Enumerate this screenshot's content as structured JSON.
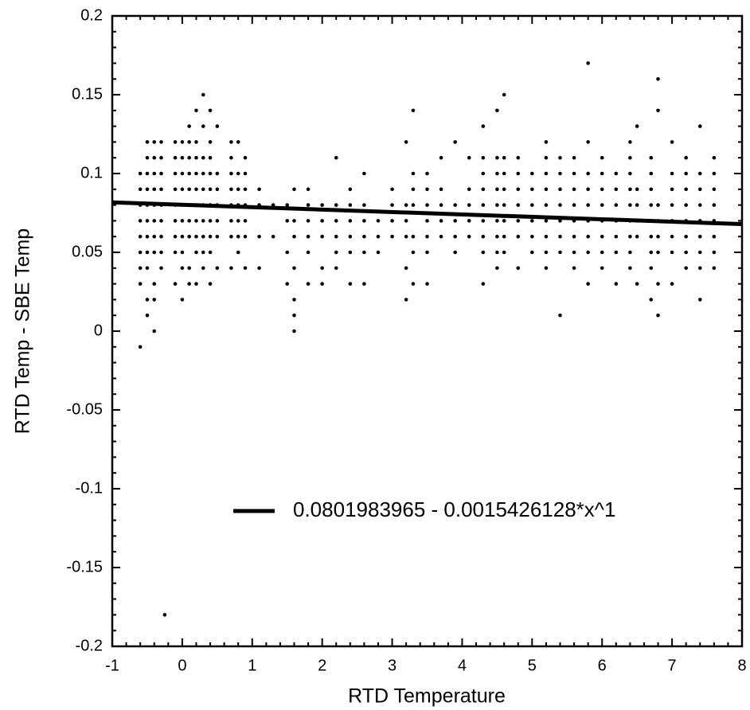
{
  "chart_data": {
    "type": "scatter",
    "xlabel": "RTD Temperature",
    "ylabel": "RTD Temp - SBE Temp",
    "xlim": [
      -1,
      8
    ],
    "ylim": [
      -0.2,
      0.2
    ],
    "xticks": [
      -1,
      0,
      1,
      2,
      3,
      4,
      5,
      6,
      7,
      8
    ],
    "yticks": [
      -0.2,
      -0.15,
      -0.1,
      -0.05,
      0,
      0.05,
      0.1,
      0.15,
      0.2
    ],
    "legend": "lower right",
    "series": [
      {
        "color": "#000000",
        "x": [
          -0.6,
          -0.6,
          -0.6,
          -0.6,
          -0.6,
          -0.6,
          -0.6,
          -0.6,
          -0.6,
          -0.5,
          -0.5,
          -0.5,
          -0.5,
          -0.5,
          -0.5,
          -0.5,
          -0.5,
          -0.5,
          -0.5,
          -0.5,
          -0.4,
          -0.4,
          -0.4,
          -0.4,
          -0.4,
          -0.4,
          -0.4,
          -0.4,
          -0.4,
          -0.4,
          -0.4,
          -0.3,
          -0.3,
          -0.3,
          -0.3,
          -0.3,
          -0.3,
          -0.3,
          -0.3,
          -0.3,
          -0.25,
          -0.1,
          -0.1,
          -0.1,
          -0.1,
          -0.1,
          -0.1,
          -0.1,
          -0.1,
          -0.1,
          0,
          0,
          0,
          0,
          0,
          0,
          0,
          0,
          0,
          0,
          0.1,
          0.1,
          0.1,
          0.1,
          0.1,
          0.1,
          0.1,
          0.1,
          0.1,
          0.1,
          0.2,
          0.2,
          0.2,
          0.2,
          0.2,
          0.2,
          0.2,
          0.2,
          0.2,
          0.2,
          0.3,
          0.3,
          0.3,
          0.3,
          0.3,
          0.3,
          0.3,
          0.3,
          0.3,
          0.3,
          0.4,
          0.4,
          0.4,
          0.4,
          0.4,
          0.4,
          0.4,
          0.4,
          0.4,
          0.4,
          0.5,
          0.5,
          0.5,
          0.5,
          0.5,
          0.5,
          0.5,
          0.7,
          0.7,
          0.7,
          0.7,
          0.7,
          0.7,
          0.7,
          0.7,
          0.8,
          0.8,
          0.8,
          0.8,
          0.8,
          0.8,
          0.8,
          0.9,
          0.9,
          0.9,
          0.9,
          0.9,
          0.9,
          0.9,
          1.1,
          1.1,
          1.1,
          1.1,
          1.3,
          1.3,
          1.5,
          1.5,
          1.5,
          1.5,
          1.6,
          1.6,
          1.6,
          1.6,
          1.6,
          1.6,
          1.6,
          1.8,
          1.8,
          1.8,
          1.8,
          1.8,
          1.8,
          2.0,
          2.0,
          2.0,
          2.0,
          2.0,
          2.2,
          2.2,
          2.2,
          2.2,
          2.2,
          2.2,
          2.4,
          2.4,
          2.4,
          2.4,
          2.4,
          2.4,
          2.6,
          2.6,
          2.6,
          2.6,
          2.6,
          2.6,
          2.8,
          2.8,
          2.8,
          3.0,
          3.0,
          3.0,
          3.0,
          3.2,
          3.2,
          3.2,
          3.2,
          3.2,
          3.2,
          3.3,
          3.3,
          3.3,
          3.3,
          3.3,
          3.3,
          3.3,
          3.5,
          3.5,
          3.5,
          3.5,
          3.5,
          3.5,
          3.5,
          3.7,
          3.7,
          3.7,
          3.7,
          3.7,
          3.9,
          3.9,
          3.9,
          3.9,
          3.9,
          4.1,
          4.1,
          4.1,
          4.1,
          4.1,
          4.3,
          4.3,
          4.3,
          4.3,
          4.3,
          4.3,
          4.3,
          4.3,
          4.3,
          4.5,
          4.5,
          4.5,
          4.5,
          4.5,
          4.5,
          4.5,
          4.5,
          4.5,
          4.6,
          4.6,
          4.6,
          4.6,
          4.6,
          4.6,
          4.6,
          4.6,
          4.8,
          4.8,
          4.8,
          4.8,
          4.8,
          4.8,
          4.8,
          5.0,
          5.0,
          5.0,
          5.0,
          5.0,
          5.0,
          5.2,
          5.2,
          5.2,
          5.2,
          5.2,
          5.2,
          5.2,
          5.2,
          5.2,
          5.4,
          5.4,
          5.4,
          5.4,
          5.4,
          5.4,
          5.4,
          5.4,
          5.6,
          5.6,
          5.6,
          5.6,
          5.6,
          5.6,
          5.6,
          5.6,
          5.8,
          5.8,
          5.8,
          5.8,
          5.8,
          5.8,
          5.8,
          5.8,
          5.8,
          6.0,
          6.0,
          6.0,
          6.0,
          6.0,
          6.0,
          6.0,
          6.0,
          6.2,
          6.2,
          6.2,
          6.2,
          6.2,
          6.2,
          6.2,
          6.4,
          6.4,
          6.4,
          6.4,
          6.4,
          6.4,
          6.4,
          6.4,
          6.4,
          6.5,
          6.5,
          6.5,
          6.5,
          6.5,
          6.5,
          6.7,
          6.7,
          6.7,
          6.7,
          6.7,
          6.7,
          6.7,
          6.7,
          6.7,
          6.8,
          6.8,
          6.8,
          6.8,
          6.8,
          6.8,
          6.8,
          6.8,
          7.0,
          7.0,
          7.0,
          7.0,
          7.0,
          7.0,
          7.0,
          7.0,
          7.2,
          7.2,
          7.2,
          7.2,
          7.2,
          7.2,
          7.2,
          7.2,
          7.4,
          7.4,
          7.4,
          7.4,
          7.4,
          7.4,
          7.4,
          7.4,
          7.4,
          7.6,
          7.6,
          7.6,
          7.6,
          7.6,
          7.6,
          7.6,
          7.6
        ],
        "values": [
          0.03,
          0.04,
          0.05,
          0.06,
          0.07,
          0.08,
          0.09,
          0.1,
          -0.01,
          0.02,
          0.04,
          0.05,
          0.06,
          0.07,
          0.08,
          0.09,
          0.1,
          0.11,
          0.12,
          0.01,
          0.02,
          0.03,
          0.05,
          0.06,
          0.07,
          0.08,
          0.09,
          0.1,
          0.11,
          0.12,
          0,
          0.04,
          0.05,
          0.06,
          0.07,
          0.08,
          0.09,
          0.1,
          0.11,
          0.12,
          -0.18,
          0.03,
          0.05,
          0.06,
          0.07,
          0.08,
          0.09,
          0.1,
          0.11,
          0.12,
          0.02,
          0.04,
          0.05,
          0.06,
          0.07,
          0.08,
          0.09,
          0.1,
          0.11,
          0.12,
          0.03,
          0.04,
          0.06,
          0.07,
          0.08,
          0.09,
          0.1,
          0.11,
          0.12,
          0.13,
          0.03,
          0.05,
          0.06,
          0.07,
          0.08,
          0.09,
          0.1,
          0.11,
          0.12,
          0.14,
          0.04,
          0.05,
          0.06,
          0.07,
          0.08,
          0.09,
          0.1,
          0.11,
          0.13,
          0.15,
          0.03,
          0.05,
          0.06,
          0.07,
          0.08,
          0.09,
          0.1,
          0.11,
          0.12,
          0.14,
          0.04,
          0.06,
          0.07,
          0.08,
          0.09,
          0.1,
          0.13,
          0.04,
          0.06,
          0.07,
          0.08,
          0.09,
          0.1,
          0.11,
          0.12,
          0.05,
          0.06,
          0.07,
          0.08,
          0.09,
          0.1,
          0.12,
          0.04,
          0.06,
          0.07,
          0.08,
          0.09,
          0.1,
          0.11,
          0.04,
          0.06,
          0.08,
          0.09,
          0.06,
          0.08,
          0.03,
          0.05,
          0.07,
          0.08,
          0,
          0.01,
          0.02,
          0.04,
          0.06,
          0.07,
          0.09,
          0.03,
          0.05,
          0.06,
          0.07,
          0.08,
          0.09,
          0.03,
          0.04,
          0.06,
          0.07,
          0.08,
          0.04,
          0.05,
          0.06,
          0.07,
          0.08,
          0.11,
          0.03,
          0.05,
          0.06,
          0.07,
          0.08,
          0.09,
          0.03,
          0.05,
          0.06,
          0.07,
          0.08,
          0.1,
          0.05,
          0.06,
          0.07,
          0.06,
          0.07,
          0.08,
          0.09,
          0.02,
          0.04,
          0.06,
          0.07,
          0.08,
          0.12,
          0.03,
          0.05,
          0.06,
          0.08,
          0.09,
          0.1,
          0.14,
          0.03,
          0.05,
          0.06,
          0.07,
          0.08,
          0.09,
          0.1,
          0.06,
          0.07,
          0.08,
          0.09,
          0.11,
          0.05,
          0.06,
          0.07,
          0.08,
          0.12,
          0.06,
          0.07,
          0.08,
          0.09,
          0.11,
          0.03,
          0.05,
          0.06,
          0.07,
          0.08,
          0.09,
          0.1,
          0.11,
          0.13,
          0.04,
          0.05,
          0.06,
          0.07,
          0.08,
          0.09,
          0.1,
          0.11,
          0.14,
          0.05,
          0.06,
          0.07,
          0.08,
          0.09,
          0.1,
          0.11,
          0.15,
          0.04,
          0.06,
          0.07,
          0.08,
          0.09,
          0.1,
          0.11,
          0.05,
          0.06,
          0.07,
          0.08,
          0.09,
          0.1,
          0.04,
          0.05,
          0.06,
          0.07,
          0.08,
          0.09,
          0.1,
          0.11,
          0.12,
          0.01,
          0.05,
          0.06,
          0.07,
          0.08,
          0.09,
          0.1,
          0.11,
          0.04,
          0.05,
          0.06,
          0.07,
          0.08,
          0.09,
          0.1,
          0.11,
          0.03,
          0.05,
          0.06,
          0.07,
          0.08,
          0.09,
          0.1,
          0.12,
          0.17,
          0.04,
          0.05,
          0.06,
          0.07,
          0.08,
          0.09,
          0.1,
          0.11,
          0.03,
          0.05,
          0.06,
          0.07,
          0.08,
          0.09,
          0.1,
          0.04,
          0.05,
          0.06,
          0.07,
          0.08,
          0.09,
          0.1,
          0.11,
          0.12,
          0.03,
          0.06,
          0.07,
          0.08,
          0.09,
          0.13,
          0.02,
          0.04,
          0.05,
          0.06,
          0.07,
          0.08,
          0.09,
          0.1,
          0.11,
          0.01,
          0.03,
          0.05,
          0.06,
          0.07,
          0.08,
          0.14,
          0.16,
          0.03,
          0.05,
          0.06,
          0.07,
          0.08,
          0.09,
          0.1,
          0.12,
          0.04,
          0.05,
          0.06,
          0.07,
          0.08,
          0.09,
          0.1,
          0.11,
          0.02,
          0.04,
          0.05,
          0.06,
          0.07,
          0.08,
          0.09,
          0.1,
          0.13,
          0.04,
          0.05,
          0.06,
          0.07,
          0.08,
          0.09,
          0.1,
          0.11
        ]
      },
      {
        "name": "0.0801983965 - 0.0015426128*x^1",
        "type": "line",
        "color": "#000000",
        "x": [
          -1,
          8
        ],
        "values": [
          0.0817,
          0.0679
        ]
      }
    ]
  }
}
